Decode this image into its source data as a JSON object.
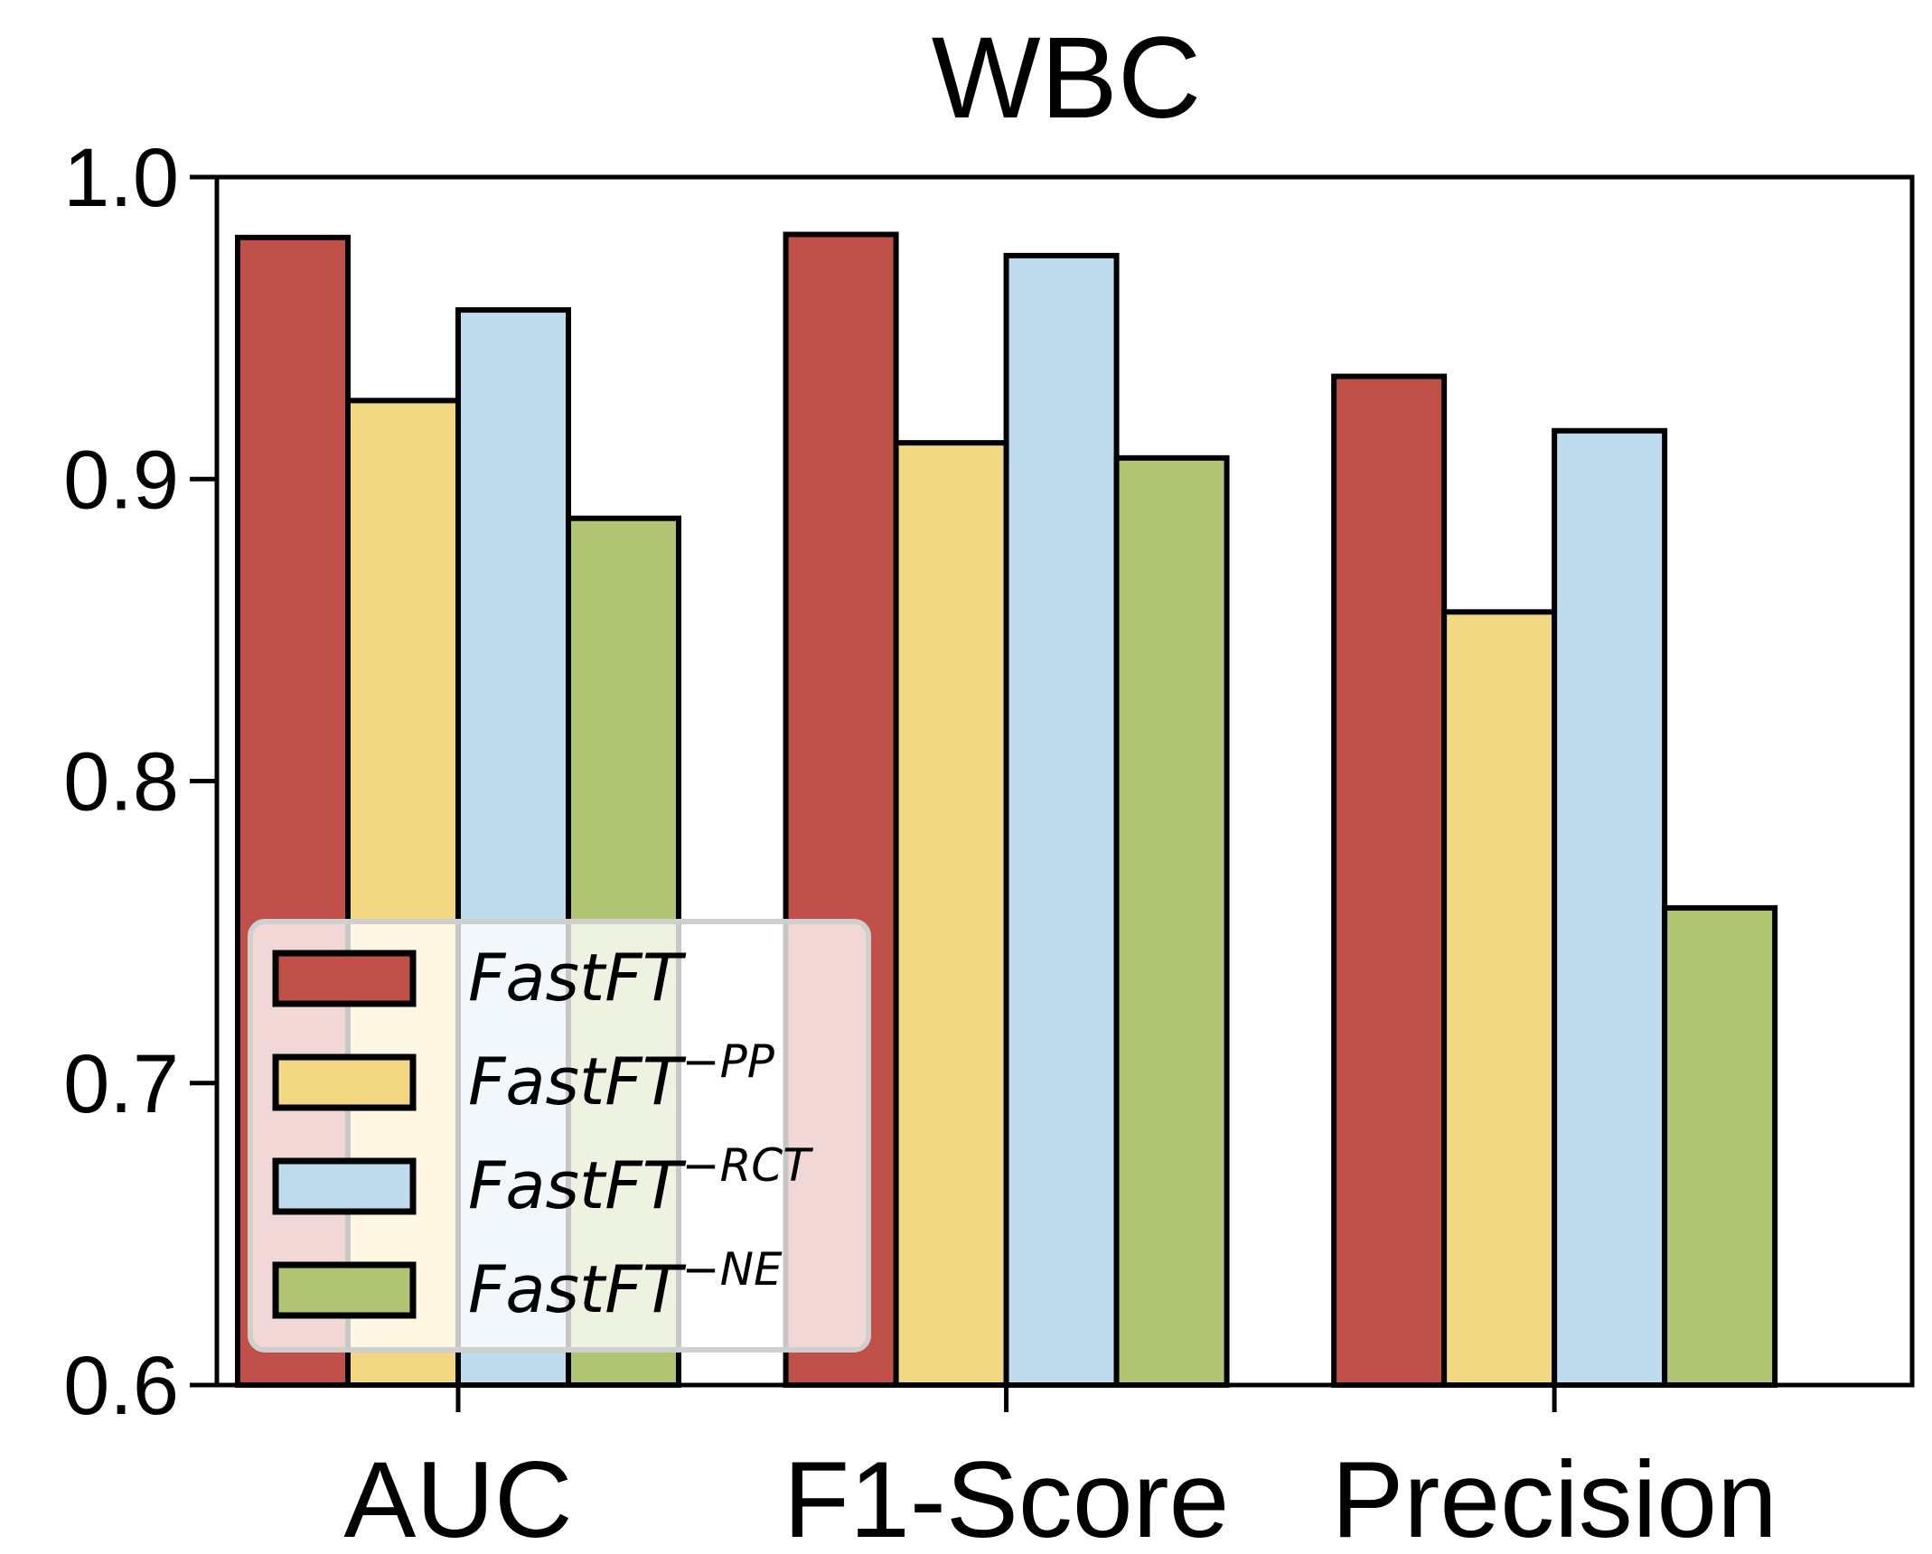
{
  "chart_data": {
    "type": "bar",
    "title": "WBC",
    "xlabel": "",
    "ylabel": "",
    "categories": [
      "AUC",
      "F1-Score",
      "Precision"
    ],
    "ylim": [
      0.6,
      1.0
    ],
    "yticks": [
      "0.6",
      "0.7",
      "0.8",
      "0.9",
      "1.0"
    ],
    "grid": false,
    "legend_position": "bottom-left",
    "series": [
      {
        "name": "FastFT",
        "base": "FastFT",
        "sup": "",
        "color": "#c0504a",
        "values": [
          0.98,
          0.981,
          0.934
        ]
      },
      {
        "name": "FastFT−PP",
        "base": "FastFT",
        "sup": "−PP",
        "color": "#f3d883",
        "values": [
          0.926,
          0.912,
          0.856
        ]
      },
      {
        "name": "FastFT−RCT",
        "base": "FastFT",
        "sup": "−RCT",
        "color": "#bedcee",
        "values": [
          0.956,
          0.974,
          0.916
        ]
      },
      {
        "name": "FastFT−NE",
        "base": "FastFT",
        "sup": "−NE",
        "color": "#b0c474",
        "values": [
          0.887,
          0.907,
          0.758
        ]
      }
    ]
  }
}
